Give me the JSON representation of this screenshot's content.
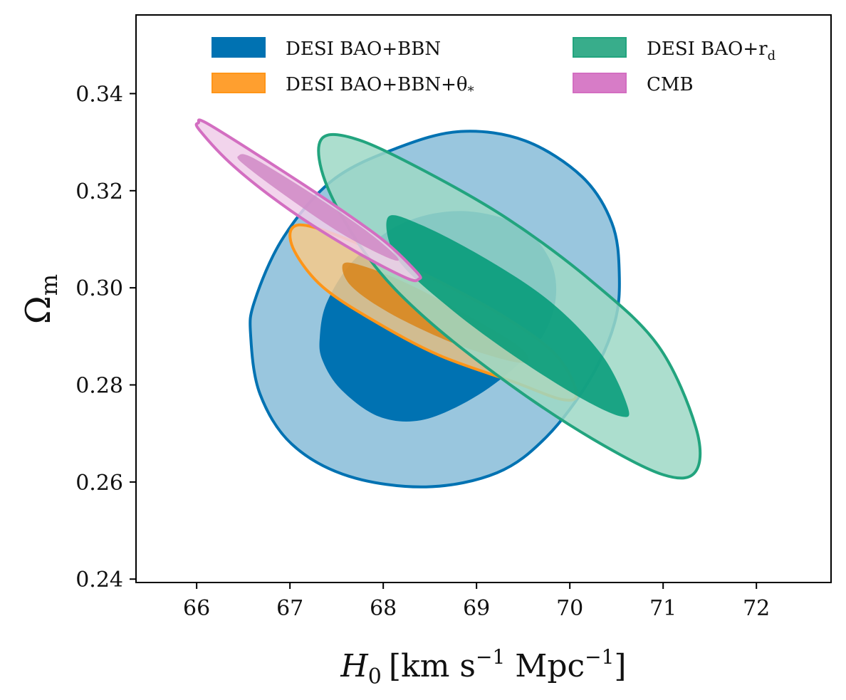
{
  "chart_data": {
    "type": "contour",
    "title": "",
    "xlabel": "H_0 [km s^-1 Mpc^-1]",
    "xlabel_parts": {
      "symbol": "H",
      "sub": "0",
      "unit_open": "[km s",
      "exp1": "−1",
      "unit_mid": " Mpc",
      "exp2": "−1",
      "unit_close": "]"
    },
    "ylabel": "Ω_m",
    "ylabel_parts": {
      "symbol": "Ω",
      "sub": "m"
    },
    "xlim": [
      65.35,
      72.8
    ],
    "ylim": [
      0.2393,
      0.3562
    ],
    "xticks": [
      66,
      67,
      68,
      69,
      70,
      71,
      72
    ],
    "xtick_labels": [
      "66",
      "67",
      "68",
      "69",
      "70",
      "71",
      "72"
    ],
    "yticks": [
      0.24,
      0.26,
      0.28,
      0.3,
      0.32,
      0.34
    ],
    "ytick_labels": [
      "0.24",
      "0.26",
      "0.28",
      "0.30",
      "0.32",
      "0.34"
    ],
    "grid": false,
    "legend_placement": "top",
    "series": [
      {
        "name": "DESI BAO+BBN",
        "legend": {
          "text": "DESI BAO+BBN",
          "sub": ""
        },
        "color": "#0072b2",
        "outer_fill": "#99c6de",
        "inner_fill": "#0072b2",
        "draw_order": 1,
        "contour_95": [
          [
            66.58,
            0.2899
          ],
          [
            66.62,
            0.2972
          ],
          [
            66.93,
            0.3104
          ],
          [
            67.46,
            0.3222
          ],
          [
            68.15,
            0.3288
          ],
          [
            68.83,
            0.3322
          ],
          [
            69.52,
            0.3303
          ],
          [
            70.13,
            0.3229
          ],
          [
            70.45,
            0.3134
          ],
          [
            70.53,
            0.3031
          ],
          [
            70.48,
            0.2928
          ],
          [
            70.21,
            0.281
          ],
          [
            69.75,
            0.2693
          ],
          [
            69.22,
            0.2619
          ],
          [
            68.46,
            0.259
          ],
          [
            67.63,
            0.2612
          ],
          [
            67.02,
            0.2678
          ],
          [
            66.68,
            0.2781
          ]
        ],
        "contour_68": [
          [
            67.32,
            0.2899
          ],
          [
            67.4,
            0.2972
          ],
          [
            67.7,
            0.306
          ],
          [
            68.22,
            0.3134
          ],
          [
            68.84,
            0.3158
          ],
          [
            69.45,
            0.313
          ],
          [
            69.78,
            0.306
          ],
          [
            69.85,
            0.298
          ],
          [
            69.7,
            0.2898
          ],
          [
            69.35,
            0.2826
          ],
          [
            68.9,
            0.2766
          ],
          [
            68.4,
            0.2727
          ],
          [
            67.95,
            0.2735
          ],
          [
            67.55,
            0.279
          ],
          [
            67.35,
            0.285
          ]
        ]
      },
      {
        "name": "DESI BAO+BBN+θ*",
        "legend": {
          "text": "DESI BAO+BBN+θ",
          "sub": "*"
        },
        "color": "#ff9518",
        "outer_fill": "#f6c98a",
        "inner_fill": "#d9851a",
        "draw_order": 2,
        "contour_95": [
          [
            67.02,
            0.3122
          ],
          [
            67.25,
            0.3125
          ],
          [
            67.9,
            0.3077
          ],
          [
            68.6,
            0.3013
          ],
          [
            69.3,
            0.294
          ],
          [
            69.85,
            0.2862
          ],
          [
            70.07,
            0.2784
          ],
          [
            69.92,
            0.277
          ],
          [
            69.4,
            0.2806
          ],
          [
            68.6,
            0.2861
          ],
          [
            67.9,
            0.2932
          ],
          [
            67.35,
            0.3002
          ],
          [
            67.05,
            0.3075
          ]
        ],
        "contour_68": [
          [
            67.57,
            0.3049
          ],
          [
            67.8,
            0.3044
          ],
          [
            68.3,
            0.3005
          ],
          [
            68.95,
            0.2938
          ],
          [
            69.45,
            0.288
          ],
          [
            69.55,
            0.2848
          ],
          [
            69.3,
            0.2852
          ],
          [
            68.7,
            0.289
          ],
          [
            68.05,
            0.295
          ],
          [
            67.65,
            0.3005
          ]
        ]
      },
      {
        "name": "DESI BAO+r_d",
        "legend": {
          "text": "DESI BAO+r",
          "sub": "d"
        },
        "color": "#22a47e",
        "outer_fill": "#9dd8c6",
        "inner_fill": "#009a77",
        "draw_order": 3,
        "contour_95": [
          [
            67.33,
            0.3304
          ],
          [
            67.7,
            0.3307
          ],
          [
            68.45,
            0.324
          ],
          [
            69.35,
            0.314
          ],
          [
            70.25,
            0.3011
          ],
          [
            70.95,
            0.288
          ],
          [
            71.35,
            0.2713
          ],
          [
            71.35,
            0.2622
          ],
          [
            71.0,
            0.2615
          ],
          [
            70.25,
            0.2688
          ],
          [
            69.35,
            0.2802
          ],
          [
            68.45,
            0.2938
          ],
          [
            67.85,
            0.306
          ],
          [
            67.4,
            0.3208
          ]
        ],
        "contour_68": [
          [
            68.05,
            0.3145
          ],
          [
            68.4,
            0.313
          ],
          [
            69.1,
            0.306
          ],
          [
            69.8,
            0.297
          ],
          [
            70.35,
            0.286
          ],
          [
            70.62,
            0.2755
          ],
          [
            70.55,
            0.2735
          ],
          [
            70.1,
            0.2775
          ],
          [
            69.4,
            0.286
          ],
          [
            68.7,
            0.296
          ],
          [
            68.15,
            0.306
          ]
        ]
      },
      {
        "name": "CMB",
        "legend": {
          "text": "CMB",
          "sub": ""
        },
        "color": "#d36ec1",
        "outer_fill": "#f0cde9",
        "inner_fill": "#d088c6",
        "draw_order": 4,
        "contour_95": [
          [
            66.02,
            0.334
          ],
          [
            66.1,
            0.334
          ],
          [
            66.7,
            0.3268
          ],
          [
            67.4,
            0.318
          ],
          [
            68.0,
            0.3098
          ],
          [
            68.36,
            0.3032
          ],
          [
            68.38,
            0.3018
          ],
          [
            68.25,
            0.302
          ],
          [
            67.7,
            0.3075
          ],
          [
            67.0,
            0.316
          ],
          [
            66.4,
            0.325
          ],
          [
            66.03,
            0.3325
          ]
        ],
        "contour_68": [
          [
            66.45,
            0.3272
          ],
          [
            66.6,
            0.3268
          ],
          [
            67.2,
            0.3198
          ],
          [
            67.8,
            0.312
          ],
          [
            68.15,
            0.3063
          ],
          [
            68.05,
            0.3062
          ],
          [
            67.55,
            0.3112
          ],
          [
            66.95,
            0.319
          ],
          [
            66.5,
            0.3255
          ]
        ]
      }
    ]
  }
}
